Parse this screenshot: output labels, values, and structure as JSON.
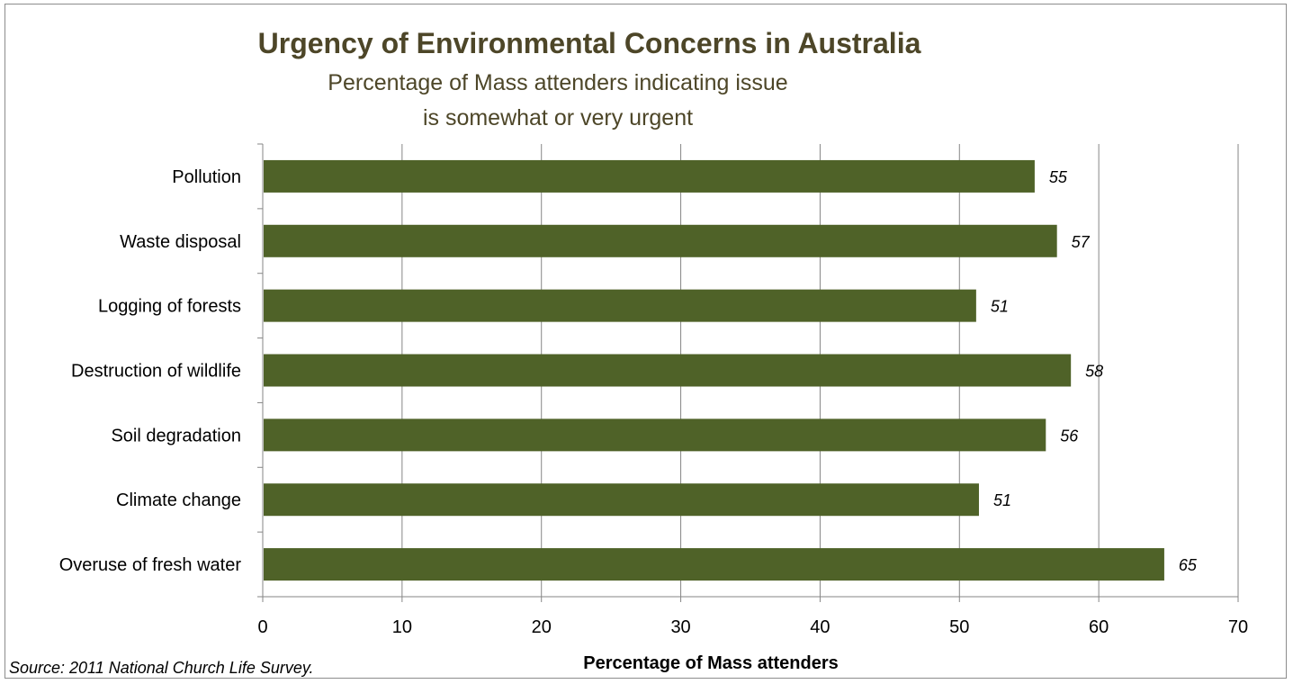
{
  "chart_data": {
    "type": "bar",
    "orientation": "horizontal",
    "title": "Urgency of Environmental Concerns in Australia",
    "subtitle_lines": [
      "Percentage of Mass attenders indicating issue",
      "is somewhat or very urgent"
    ],
    "categories": [
      "Pollution",
      "Waste disposal",
      "Logging of forests",
      "Destruction of wildlife",
      "Soil degradation",
      "Climate change",
      "Overuse of fresh water"
    ],
    "values": [
      55.4,
      57.0,
      51.2,
      58.0,
      56.2,
      51.4,
      64.7
    ],
    "data_labels": [
      "55",
      "57",
      "51",
      "58",
      "56",
      "51",
      "65"
    ],
    "xlabel": "Percentage of Mass attenders",
    "ylabel": "",
    "xlim": [
      0,
      70
    ],
    "x_ticks": [
      0,
      10,
      20,
      30,
      40,
      50,
      60,
      70
    ],
    "grid": true,
    "legend": "none",
    "bar_color": "#4f6228",
    "grid_color": "#868686",
    "title_color": "#4d4628"
  },
  "source_note": "Source: 2011 National Church Life Survey."
}
